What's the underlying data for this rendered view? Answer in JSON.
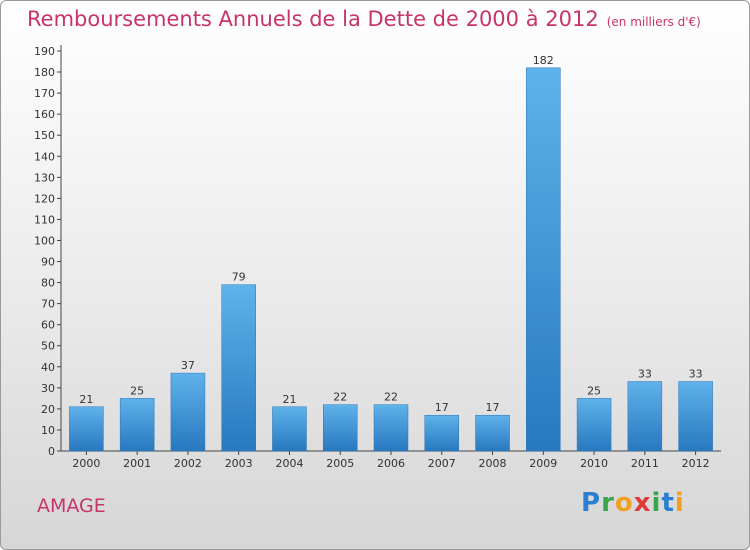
{
  "title": "Remboursements Annuels de la Dette de 2000 à 2012",
  "unit": "(en milliers d'€)",
  "commune": "AMAGE",
  "logo_text": "Proxiti",
  "colors": {
    "bar_light": "#5fb2ea",
    "bar_dark": "#2878bf",
    "title": "#c8336b"
  },
  "chart_data": {
    "type": "bar",
    "categories": [
      "2000",
      "2001",
      "2002",
      "2003",
      "2004",
      "2005",
      "2006",
      "2007",
      "2008",
      "2009",
      "2010",
      "2011",
      "2012"
    ],
    "values": [
      21,
      25,
      37,
      79,
      21,
      22,
      22,
      17,
      17,
      182,
      25,
      33,
      33
    ],
    "ylim": [
      0,
      190
    ],
    "yticks": [
      0,
      10,
      20,
      30,
      40,
      50,
      60,
      70,
      80,
      90,
      100,
      110,
      120,
      130,
      140,
      150,
      160,
      170,
      180,
      190
    ],
    "grid": false,
    "data_labels": true
  }
}
